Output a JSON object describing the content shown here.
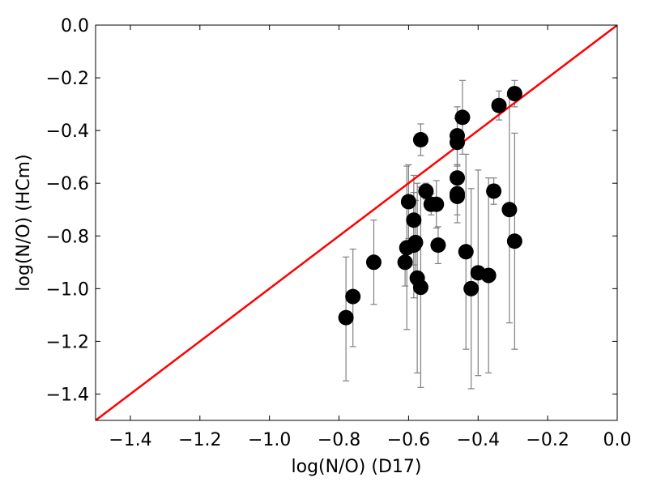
{
  "chart_data": {
    "type": "scatter",
    "title": "",
    "xlabel": "log(N/O) (D17)",
    "ylabel": "log(N/O) (HCm)",
    "xlim": [
      -1.5,
      0.0
    ],
    "ylim": [
      -1.5,
      0.0
    ],
    "xticks": [
      "−1.4",
      "−1.2",
      "−1.0",
      "−0.8",
      "−0.6",
      "−0.4",
      "−0.2",
      "0.0"
    ],
    "xtick_values": [
      -1.4,
      -1.2,
      -1.0,
      -0.8,
      -0.6,
      -0.4,
      -0.2,
      0.0
    ],
    "yticks": [
      "0.0",
      "−0.2",
      "−0.4",
      "−0.6",
      "−0.8",
      "−1.0",
      "−1.2",
      "−1.4"
    ],
    "ytick_values": [
      0.0,
      -0.2,
      -0.4,
      -0.6,
      -0.8,
      -1.0,
      -1.2,
      -1.4
    ],
    "grid": false,
    "legend": "none",
    "colors": {
      "points": "#000000",
      "errorbars": "#808080",
      "reference_line": "#ff0000"
    },
    "reference_line": {
      "x": [
        -1.5,
        0.0
      ],
      "y": [
        -1.5,
        0.0
      ]
    },
    "points": [
      {
        "x": -0.78,
        "y": -1.11,
        "err_low": 0.24,
        "err_high": 0.23
      },
      {
        "x": -0.76,
        "y": -1.03,
        "err_low": 0.19,
        "err_high": 0.18
      },
      {
        "x": -0.7,
        "y": -0.9,
        "err_low": 0.16,
        "err_high": 0.16
      },
      {
        "x": -0.61,
        "y": -0.9,
        "err_low": 0.09,
        "err_high": 0.06
      },
      {
        "x": -0.605,
        "y": -0.845,
        "err_low": 0.31,
        "err_high": 0.31
      },
      {
        "x": -0.6,
        "y": -0.67,
        "err_low": 0.14,
        "err_high": 0.14
      },
      {
        "x": -0.585,
        "y": -0.74,
        "err_low": 0.17,
        "err_high": 0.17
      },
      {
        "x": -0.58,
        "y": -0.825,
        "err_low": 0.16,
        "err_high": 0.16
      },
      {
        "x": -0.585,
        "y": -0.835,
        "err_low": 0.2,
        "err_high": 0.2
      },
      {
        "x": -0.575,
        "y": -0.96,
        "err_low": 0.36,
        "err_high": 0.36
      },
      {
        "x": -0.565,
        "y": -0.995,
        "err_low": 0.38,
        "err_high": 0.38
      },
      {
        "x": -0.565,
        "y": -0.435,
        "err_low": 0.06,
        "err_high": 0.06
      },
      {
        "x": -0.55,
        "y": -0.63,
        "err_low": 0.03,
        "err_high": 0.03
      },
      {
        "x": -0.535,
        "y": -0.68,
        "err_low": 0.04,
        "err_high": 0.04
      },
      {
        "x": -0.52,
        "y": -0.68,
        "err_low": 0.09,
        "err_high": 0.09
      },
      {
        "x": -0.515,
        "y": -0.835,
        "err_low": 0.07,
        "err_high": 0.07
      },
      {
        "x": -0.46,
        "y": -0.42,
        "err_low": 0.11,
        "err_high": 0.11
      },
      {
        "x": -0.46,
        "y": -0.445,
        "err_low": 0.09,
        "err_high": 0.09
      },
      {
        "x": -0.46,
        "y": -0.58,
        "err_low": 0.05,
        "err_high": 0.05
      },
      {
        "x": -0.46,
        "y": -0.64,
        "err_low": 0.11,
        "err_high": 0.11
      },
      {
        "x": -0.46,
        "y": -0.65,
        "err_low": 0.07,
        "err_high": 0.07
      },
      {
        "x": -0.445,
        "y": -0.35,
        "err_low": 0.14,
        "err_high": 0.14
      },
      {
        "x": -0.435,
        "y": -0.86,
        "err_low": 0.37,
        "err_high": 0.37
      },
      {
        "x": -0.42,
        "y": -1.0,
        "err_low": 0.38,
        "err_high": 0.38
      },
      {
        "x": -0.4,
        "y": -0.94,
        "err_low": 0.39,
        "err_high": 0.39
      },
      {
        "x": -0.37,
        "y": -0.95,
        "err_low": 0.37,
        "err_high": 0.37
      },
      {
        "x": -0.355,
        "y": -0.63,
        "err_low": 0.05,
        "err_high": 0.05
      },
      {
        "x": -0.34,
        "y": -0.305,
        "err_low": 0.055,
        "err_high": 0.055
      },
      {
        "x": -0.31,
        "y": -0.7,
        "err_low": 0.43,
        "err_high": 0.43
      },
      {
        "x": -0.295,
        "y": -0.26,
        "err_low": 0.05,
        "err_high": 0.05
      },
      {
        "x": -0.295,
        "y": -0.82,
        "err_low": 0.41,
        "err_high": 0.41
      }
    ]
  }
}
